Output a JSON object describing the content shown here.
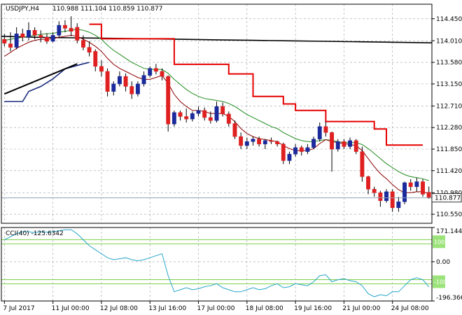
{
  "chart_data": {
    "type": "candlestick",
    "main": {
      "symbol_label": "USDJPY,H4",
      "ohlc_label": "110.988 111.104 110.859 110.877",
      "last_price": 110.877,
      "last_price_label": "110.877",
      "ylim": [
        110.37,
        114.74
      ],
      "y_ticks": [
        "114.450",
        "114.010",
        "113.580",
        "113.150",
        "112.710",
        "112.280",
        "111.850",
        "111.420",
        "110.980",
        "110.550"
      ],
      "grid": true,
      "colors": {
        "bull": "#1a2a9c",
        "bear": "#e02020",
        "ema_fast": "#8b0000",
        "ema_slow": "#1f8a1f",
        "long_ma": "#000000",
        "trail_stop": "#e60000",
        "trend_line": "#000000",
        "dmi_line": "#1a2a7c",
        "price_line": "#8fa2b8"
      },
      "candles": [
        [
          114.04,
          114.15,
          113.9,
          113.96
        ],
        [
          113.95,
          114.18,
          113.8,
          113.88
        ],
        [
          113.88,
          114.28,
          113.84,
          114.15
        ],
        [
          114.15,
          114.25,
          114.0,
          114.08
        ],
        [
          114.08,
          114.38,
          114.02,
          114.22
        ],
        [
          114.22,
          114.28,
          114.04,
          114.12
        ],
        [
          114.12,
          114.22,
          113.98,
          114.08
        ],
        [
          114.08,
          114.16,
          113.95,
          114.0
        ],
        [
          114.0,
          114.18,
          113.98,
          114.12
        ],
        [
          114.12,
          114.4,
          114.06,
          114.32
        ],
        [
          114.32,
          114.42,
          114.18,
          114.26
        ],
        [
          114.26,
          114.5,
          114.1,
          114.2
        ],
        [
          114.28,
          114.36,
          113.96,
          114.02
        ],
        [
          114.02,
          114.12,
          113.82,
          113.88
        ],
        [
          113.88,
          114.0,
          113.7,
          113.78
        ],
        [
          113.8,
          113.84,
          113.4,
          113.5
        ],
        [
          113.5,
          113.62,
          113.3,
          113.4
        ],
        [
          113.4,
          113.46,
          112.9,
          113.0
        ],
        [
          113.0,
          113.2,
          112.92,
          113.15
        ],
        [
          113.15,
          113.4,
          113.1,
          113.3
        ],
        [
          113.3,
          113.36,
          113.0,
          113.1
        ],
        [
          113.1,
          113.2,
          112.85,
          112.95
        ],
        [
          112.95,
          113.2,
          112.9,
          113.15
        ],
        [
          113.15,
          113.4,
          113.1,
          113.32
        ],
        [
          113.32,
          113.5,
          113.28,
          113.46
        ],
        [
          113.46,
          113.55,
          113.34,
          113.4
        ],
        [
          113.4,
          113.46,
          113.22,
          113.3
        ],
        [
          113.3,
          113.32,
          112.2,
          112.35
        ],
        [
          112.35,
          112.62,
          112.3,
          112.58
        ],
        [
          112.58,
          112.62,
          112.42,
          112.5
        ],
        [
          112.5,
          112.66,
          112.38,
          112.45
        ],
        [
          112.45,
          112.6,
          112.4,
          112.56
        ],
        [
          112.56,
          112.7,
          112.5,
          112.62
        ],
        [
          112.62,
          112.68,
          112.42,
          112.48
        ],
        [
          112.48,
          112.6,
          112.36,
          112.42
        ],
        [
          112.42,
          112.8,
          112.38,
          112.7
        ],
        [
          112.7,
          112.78,
          112.5,
          112.55
        ],
        [
          112.55,
          112.6,
          112.3,
          112.36
        ],
        [
          112.36,
          112.42,
          112.05,
          112.1
        ],
        [
          112.1,
          112.18,
          111.85,
          111.92
        ],
        [
          111.92,
          112.08,
          111.85,
          112.0
        ],
        [
          112.0,
          112.1,
          111.92,
          112.05
        ],
        [
          112.05,
          112.1,
          111.9,
          111.95
        ],
        [
          111.95,
          112.05,
          111.85,
          112.02
        ],
        [
          112.02,
          112.08,
          111.95,
          112.0
        ],
        [
          112.0,
          112.02,
          111.9,
          111.95
        ],
        [
          111.95,
          111.98,
          111.55,
          111.62
        ],
        [
          111.62,
          111.8,
          111.55,
          111.75
        ],
        [
          111.75,
          111.95,
          111.7,
          111.88
        ],
        [
          111.88,
          111.92,
          111.72,
          111.8
        ],
        [
          111.8,
          111.95,
          111.75,
          111.88
        ],
        [
          111.88,
          112.1,
          111.85,
          112.05
        ],
        [
          112.05,
          112.38,
          112.0,
          112.3
        ],
        [
          112.3,
          112.4,
          112.1,
          112.18
        ],
        [
          112.18,
          112.2,
          111.4,
          111.85
        ],
        [
          111.85,
          112.05,
          111.8,
          112.0
        ],
        [
          112.0,
          112.05,
          111.85,
          111.9
        ],
        [
          111.9,
          112.08,
          111.85,
          112.02
        ],
        [
          112.02,
          112.05,
          111.75,
          111.8
        ],
        [
          111.8,
          111.9,
          111.2,
          111.3
        ],
        [
          111.3,
          111.32,
          110.95,
          111.05
        ],
        [
          111.05,
          111.1,
          110.9,
          110.98
        ],
        [
          110.98,
          111.02,
          110.7,
          110.82
        ],
        [
          110.82,
          111.05,
          110.78,
          111.0
        ],
        [
          111.0,
          111.05,
          110.6,
          110.68
        ],
        [
          110.68,
          110.9,
          110.6,
          110.8
        ],
        [
          110.8,
          111.2,
          110.75,
          111.18
        ],
        [
          111.18,
          111.25,
          111.02,
          111.1
        ],
        [
          111.1,
          111.28,
          111.0,
          111.2
        ],
        [
          111.2,
          111.25,
          110.9,
          110.95
        ],
        [
          110.988,
          111.104,
          110.859,
          110.877
        ]
      ],
      "ema_fast": [
        113.7,
        113.78,
        113.86,
        113.92,
        113.98,
        114.02,
        114.04,
        114.04,
        114.05,
        114.08,
        114.1,
        114.12,
        114.1,
        114.04,
        113.98,
        113.9,
        113.8,
        113.66,
        113.54,
        113.46,
        113.4,
        113.34,
        113.28,
        113.24,
        113.24,
        113.28,
        113.32,
        113.16,
        112.94,
        112.8,
        112.7,
        112.62,
        112.62,
        112.6,
        112.56,
        112.56,
        112.56,
        112.5,
        112.4,
        112.26,
        112.16,
        112.1,
        112.06,
        112.04,
        112.02,
        112.0,
        111.92,
        111.86,
        111.82,
        111.82,
        111.82,
        111.86,
        111.96,
        112.04,
        112.0,
        111.98,
        111.96,
        111.94,
        111.92,
        111.82,
        111.66,
        111.5,
        111.36,
        111.26,
        111.14,
        111.04,
        110.98,
        110.98,
        111.0,
        111.0,
        110.96
      ],
      "ema_slow": [
        114.02,
        114.04,
        114.06,
        114.08,
        114.1,
        114.12,
        114.14,
        114.15,
        114.16,
        114.18,
        114.2,
        114.22,
        114.24,
        114.22,
        114.18,
        114.12,
        114.04,
        113.92,
        113.82,
        113.74,
        113.66,
        113.58,
        113.52,
        113.46,
        113.44,
        113.44,
        113.44,
        113.36,
        113.24,
        113.14,
        113.04,
        112.96,
        112.9,
        112.86,
        112.84,
        112.82,
        112.8,
        112.76,
        112.7,
        112.62,
        112.54,
        112.48,
        112.42,
        112.36,
        112.3,
        112.26,
        112.18,
        112.12,
        112.06,
        112.02,
        112.0,
        112.0,
        112.02,
        112.04,
        112.02,
        112.0,
        111.98,
        111.98,
        111.98,
        111.94,
        111.86,
        111.76,
        111.66,
        111.56,
        111.48,
        111.4,
        111.34,
        111.3,
        111.28,
        111.26,
        111.22
      ],
      "long_ma": [
        114.1,
        114.08,
        114.07,
        114.06,
        114.05,
        114.04,
        114.03,
        114.02,
        114.01,
        114.0,
        113.99,
        113.98,
        113.97
      ],
      "trail_stop": [
        [
          14,
          114.34
        ],
        [
          16,
          114.34
        ],
        [
          16,
          114.05
        ],
        [
          28,
          114.05
        ],
        [
          28,
          113.54
        ],
        [
          37,
          113.54
        ],
        [
          37,
          113.35
        ],
        [
          41,
          113.35
        ],
        [
          41,
          112.9
        ],
        [
          46,
          112.9
        ],
        [
          46,
          112.75
        ],
        [
          48,
          112.75
        ],
        [
          48,
          112.62
        ],
        [
          53,
          112.62
        ],
        [
          53,
          112.4
        ],
        [
          61,
          112.4
        ],
        [
          61,
          112.25
        ],
        [
          63,
          112.25
        ],
        [
          63,
          111.93
        ],
        [
          69,
          111.93
        ]
      ],
      "trend_line": [
        [
          0,
          112.95
        ],
        [
          12,
          113.55
        ]
      ],
      "dmi_line": [
        [
          0,
          112.8
        ],
        [
          3,
          112.8
        ],
        [
          4,
          113.0
        ],
        [
          6,
          113.1
        ],
        [
          8,
          113.25
        ],
        [
          10,
          113.45
        ],
        [
          13,
          113.55
        ],
        [
          14,
          113.58
        ]
      ]
    },
    "cci": {
      "label": "CCI(40) -125.6342",
      "ylim": [
        -196.3665,
        171.1445
      ],
      "y_ticks": [
        "171.1445",
        "0.00",
        "-196.3665"
      ],
      "levels": [
        "100",
        "-100"
      ],
      "level_values": [
        100,
        -100
      ],
      "values": [
        110,
        125,
        140,
        150,
        150,
        145,
        150,
        148,
        150,
        155,
        160,
        160,
        140,
        110,
        80,
        60,
        40,
        20,
        10,
        15,
        20,
        10,
        5,
        10,
        20,
        30,
        40,
        -70,
        -150,
        -140,
        -130,
        -140,
        -135,
        -125,
        -120,
        -110,
        -130,
        -140,
        -150,
        -150,
        -140,
        -130,
        -140,
        -135,
        -120,
        -110,
        -130,
        -125,
        -110,
        -115,
        -120,
        -100,
        -70,
        -65,
        -100,
        -90,
        -85,
        -95,
        -100,
        -120,
        -160,
        -175,
        -165,
        -170,
        -150,
        -150,
        -120,
        -90,
        -80,
        -90,
        -125.6342
      ]
    },
    "x_labels": [
      "7 Jul 2017",
      "11 Jul 00:00",
      "12 Jul 08:00",
      "13 Jul 16:00",
      "17 Jul 00:00",
      "18 Jul 08:00",
      "19 Jul 16:00",
      "21 Jul 00:00",
      "24 Jul 08:00"
    ],
    "x_label_index": [
      0,
      8,
      16,
      24,
      32,
      40,
      48,
      56,
      64
    ]
  }
}
